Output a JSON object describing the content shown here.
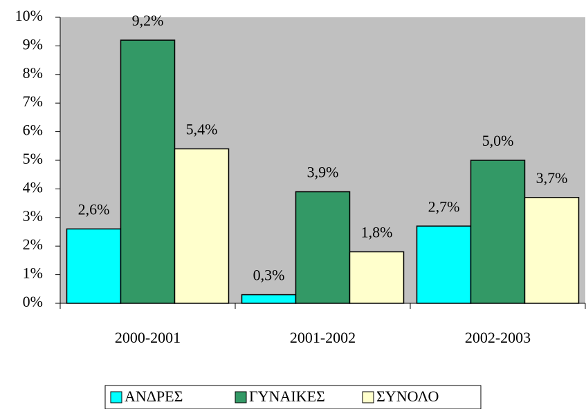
{
  "chart_data": {
    "type": "bar",
    "categories": [
      "2000-2001",
      "2001-2002",
      "2002-2003"
    ],
    "series": [
      {
        "name": "ΑΝΔΡΕΣ",
        "color": "#00ffff",
        "values": [
          2.6,
          0.3,
          2.7
        ],
        "value_labels": [
          "2,6%",
          "0,3%",
          "2,7%"
        ]
      },
      {
        "name": "ΓΥΝΑΙΚΕΣ",
        "color": "#339966",
        "values": [
          9.2,
          3.9,
          5.0
        ],
        "value_labels": [
          "9,2%",
          "3,9%",
          "5,0%"
        ]
      },
      {
        "name": "ΣΥΝΟΛΟ",
        "color": "#ffffcc",
        "values": [
          5.4,
          1.8,
          3.7
        ],
        "value_labels": [
          "5,4%",
          "1,8%",
          "3,7%"
        ]
      }
    ],
    "ylim": [
      0,
      10
    ],
    "yticks": [
      {
        "value": 0,
        "label": "0%"
      },
      {
        "value": 1,
        "label": "1%"
      },
      {
        "value": 2,
        "label": "2%"
      },
      {
        "value": 3,
        "label": "3%"
      },
      {
        "value": 4,
        "label": "4%"
      },
      {
        "value": 5,
        "label": "5%"
      },
      {
        "value": 6,
        "label": "6%"
      },
      {
        "value": 7,
        "label": "7%"
      },
      {
        "value": 8,
        "label": "8%"
      },
      {
        "value": 9,
        "label": "9%"
      },
      {
        "value": 10,
        "label": "10%"
      }
    ],
    "plot_background": "#c0c0c0",
    "legend": "bottom"
  }
}
